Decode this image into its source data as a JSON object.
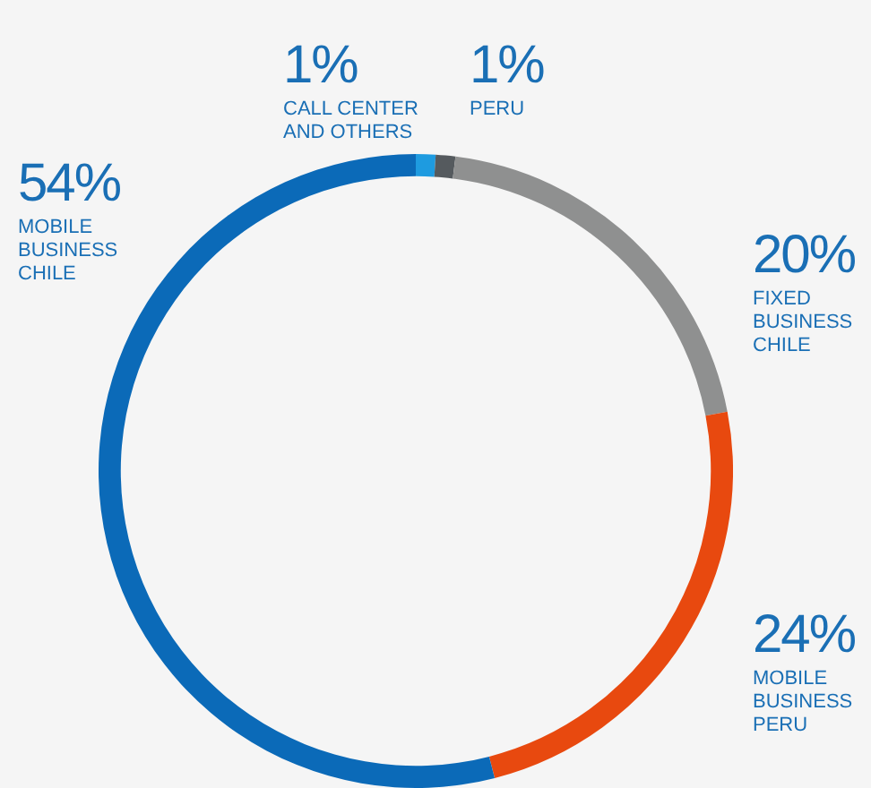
{
  "chart_data": {
    "type": "donut",
    "categories": [
      "CALL CENTER AND OTHERS",
      "PERU",
      "FIXED BUSINESS CHILE",
      "MOBILE BUSINESS PERU",
      "MOBILE BUSINESS CHILE"
    ],
    "values": [
      1,
      1,
      20,
      24,
      54
    ],
    "value_labels": [
      "1%",
      "1%",
      "20%",
      "24%",
      "54%"
    ],
    "colors": [
      "#1e9be0",
      "#555a5e",
      "#8f9090",
      "#e8490f",
      "#0b6ab8"
    ]
  }
}
